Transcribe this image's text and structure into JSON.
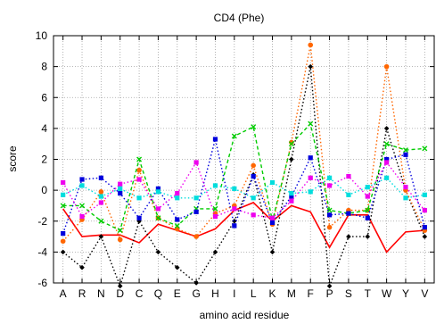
{
  "chart_data": {
    "type": "line",
    "title": "CD4 (Phe)",
    "xlabel": "amino acid residue",
    "ylabel": "score",
    "ylim": [
      -6,
      10
    ],
    "yticks": [
      -6,
      -4,
      -2,
      0,
      2,
      4,
      6,
      8,
      10
    ],
    "grid": true,
    "categories": [
      "A",
      "R",
      "N",
      "D",
      "C",
      "Q",
      "E",
      "G",
      "H",
      "I",
      "L",
      "K",
      "M",
      "F",
      "P",
      "S",
      "T",
      "W",
      "Y",
      "V"
    ],
    "series": [
      {
        "color": "#ff0000",
        "dash": "solid",
        "marker": "none",
        "values": [
          -1.2,
          -3.0,
          -2.9,
          -2.9,
          -3.4,
          -2.2,
          -2.6,
          -3.0,
          -2.5,
          -1.3,
          -0.8,
          -2.0,
          -1.0,
          -1.4,
          -3.7,
          -1.6,
          -1.6,
          -4.0,
          -2.7,
          -2.6
        ]
      },
      {
        "color": "#000000",
        "dash": "dot",
        "marker": "diamond",
        "values": [
          -4.0,
          -5.0,
          -3.0,
          -6.2,
          -2.0,
          -4.0,
          -5.0,
          -6.0,
          -4.0,
          -2.0,
          1.0,
          -4.0,
          2.0,
          8.0,
          -6.2,
          -3.0,
          -3.0,
          4.0,
          0.0,
          -3.0
        ]
      },
      {
        "color": "#ff6600",
        "dash": "dot",
        "marker": "circle",
        "values": [
          -3.3,
          -1.9,
          -0.1,
          -3.2,
          1.3,
          -1.8,
          -2.5,
          -3.0,
          -1.5,
          -1.0,
          1.6,
          -2.2,
          3.1,
          9.4,
          -2.4,
          -1.3,
          -1.3,
          8.0,
          0.0,
          -2.6
        ]
      },
      {
        "color": "#00cc00",
        "dash": "dash",
        "marker": "x",
        "values": [
          -1.0,
          -1.0,
          -2.0,
          -2.6,
          2.0,
          -1.8,
          -2.3,
          -1.2,
          -1.2,
          3.5,
          4.1,
          -2.0,
          3.0,
          4.3,
          -1.3,
          -1.5,
          -1.3,
          3.0,
          2.6,
          2.7
        ]
      },
      {
        "color": "#0000dd",
        "dash": "dot",
        "marker": "square",
        "values": [
          -2.8,
          0.7,
          0.8,
          -0.2,
          -1.8,
          0.1,
          -1.9,
          -1.4,
          3.3,
          -2.3,
          0.9,
          -2.1,
          -0.4,
          2.1,
          -1.6,
          -1.5,
          -1.8,
          2.0,
          2.3,
          -2.4
        ]
      },
      {
        "color": "#ee00ee",
        "dash": "dot",
        "marker": "square",
        "values": [
          0.5,
          -1.7,
          -0.8,
          0.4,
          0.7,
          -1.2,
          -0.2,
          1.8,
          -1.7,
          -1.2,
          -1.6,
          -1.8,
          -0.7,
          0.8,
          0.3,
          0.9,
          -0.4,
          1.8,
          0.2,
          -1.3
        ]
      },
      {
        "color": "#00dddd",
        "dash": "dot",
        "marker": "square",
        "values": [
          -0.3,
          0.3,
          -0.4,
          0.1,
          -0.5,
          -0.1,
          -0.5,
          -0.5,
          0.3,
          0.1,
          -0.5,
          0.5,
          -0.2,
          -0.1,
          0.8,
          -0.3,
          0.2,
          0.8,
          -0.5,
          -0.3
        ]
      }
    ]
  }
}
